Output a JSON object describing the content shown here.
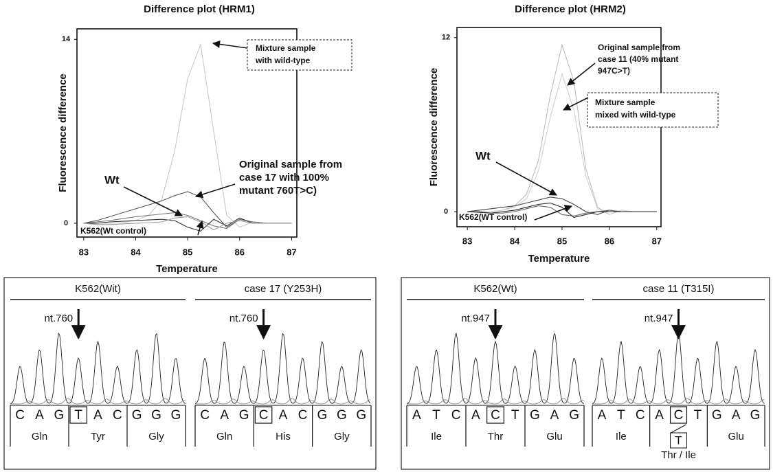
{
  "chart_data": [
    {
      "type": "line",
      "title": "Difference plot  (HRM1)",
      "x_label": "Temperature",
      "y_label": "Fluorescence difference",
      "x": [
        83,
        83.25,
        83.5,
        83.75,
        84,
        84.25,
        84.5,
        84.75,
        85,
        85.25,
        85.5,
        85.75,
        86,
        86.25,
        86.5,
        86.75,
        87
      ],
      "xlim": [
        82.87,
        87.1
      ],
      "xticks": [
        83,
        84,
        85,
        86,
        87
      ],
      "ylim": [
        -1.05,
        14.8
      ],
      "yticks": [
        0,
        14
      ],
      "series": [
        {
          "color": "#c8c8c8",
          "values": [
            0,
            0,
            0,
            0.05,
            0.2,
            0.6,
            1.8,
            5.5,
            11,
            13.6,
            7,
            0.6,
            -0.3,
            0.1,
            0,
            0,
            0
          ]
        },
        {
          "color": "#555555",
          "values": [
            0,
            0.2,
            0.5,
            0.8,
            1.1,
            1.4,
            1.7,
            2.1,
            2.4,
            2.0,
            0.8,
            -0.3,
            0.3,
            0.1,
            0,
            0,
            0
          ]
        },
        {
          "color": "#777777",
          "values": [
            0,
            0.1,
            0.2,
            0.35,
            0.5,
            0.6,
            0.7,
            0.8,
            0.6,
            0.2,
            -0.2,
            -0.4,
            0.3,
            0.1,
            0,
            0,
            0
          ]
        },
        {
          "color": "#333333",
          "values": [
            0,
            0,
            0.1,
            0.15,
            0.2,
            0.25,
            0.3,
            0.2,
            -0.3,
            -0.6,
            0.3,
            -0.2,
            0.4,
            0,
            0,
            0,
            0
          ]
        },
        {
          "color": "#999999",
          "values": [
            0,
            -0.1,
            -0.1,
            -0.05,
            0,
            0.05,
            0.1,
            0.4,
            0.5,
            0.1,
            -0.5,
            0,
            0.2,
            0,
            0,
            0,
            0
          ]
        }
      ],
      "annotations": [
        {
          "lines": [
            "Mixture sample",
            "with wild-type"
          ]
        },
        {
          "lines": [
            "Original sample from",
            "case 17 with 100%",
            "mutant 760T>C)"
          ]
        },
        {
          "lines": [
            "Wt"
          ]
        },
        {
          "lines": [
            "K562(Wt control)"
          ]
        }
      ]
    },
    {
      "type": "line",
      "title": "Difference plot  (HRM2)",
      "x_label": "Temperature",
      "y_label": "Fluorescence difference",
      "x": [
        83,
        83.25,
        83.5,
        83.75,
        84,
        84.25,
        84.5,
        84.75,
        85,
        85.25,
        85.5,
        85.75,
        86,
        86.25,
        86.5,
        86.75,
        87
      ],
      "xlim": [
        82.78,
        87.09
      ],
      "xticks": [
        83,
        84,
        85,
        86,
        87
      ],
      "ylim": [
        -1.04,
        12.7
      ],
      "yticks": [
        0,
        12
      ],
      "series": [
        {
          "color": "#bbbbbb",
          "values": [
            0,
            0,
            0,
            0.1,
            0.4,
            1.2,
            3.5,
            8,
            11.5,
            9,
            3,
            0.3,
            -0.2,
            0.1,
            0,
            0,
            0
          ]
        },
        {
          "color": "#d0d0d0",
          "values": [
            0,
            0,
            0,
            0.1,
            0.3,
            0.9,
            2.8,
            6.5,
            9.5,
            7,
            2.5,
            0.2,
            -0.2,
            0.1,
            0,
            0,
            0
          ]
        },
        {
          "color": "#444444",
          "values": [
            0,
            0.1,
            0.2,
            0.3,
            0.4,
            0.6,
            0.8,
            1.0,
            0.9,
            0.5,
            0,
            -0.2,
            0.1,
            0,
            0,
            0,
            0
          ]
        },
        {
          "color": "#666666",
          "values": [
            0,
            0,
            -0.1,
            -0.1,
            0,
            0.2,
            0.4,
            0.3,
            -0.2,
            -0.3,
            -0.1,
            0,
            0.1,
            0,
            0,
            0,
            0
          ]
        },
        {
          "color": "#222222",
          "values": [
            0,
            -0.05,
            -0.1,
            0,
            0.1,
            0.3,
            0.5,
            0.6,
            0.3,
            -0.4,
            -0.2,
            0,
            0,
            0,
            0,
            0,
            0
          ]
        }
      ],
      "annotations": [
        {
          "lines": [
            "Original sample from",
            "case 11 (40% mutant",
            "947C>T)"
          ]
        },
        {
          "lines": [
            "Mixture sample",
            "mixed with wild-type"
          ]
        },
        {
          "lines": [
            "Wt"
          ]
        },
        {
          "lines": [
            "K562(WT control)"
          ]
        }
      ]
    }
  ],
  "sequencing": [
    {
      "groups": [
        {
          "title": "K562(Wit)",
          "marker": "nt.760",
          "bases": [
            "C",
            "A",
            "G",
            "T",
            "A",
            "C",
            "G",
            "G",
            "G"
          ],
          "boxed": 3,
          "codons": [
            "Gln",
            "Tyr",
            "Gly"
          ]
        },
        {
          "title": "case 17 (Y253H)",
          "marker": "nt.760",
          "bases": [
            "C",
            "A",
            "G",
            "C",
            "A",
            "C",
            "G",
            "G",
            "G"
          ],
          "boxed": 3,
          "codons": [
            "Gln",
            "His",
            "Gly"
          ]
        }
      ]
    },
    {
      "groups": [
        {
          "title": "K562(Wt)",
          "marker": "nt.947",
          "bases": [
            "A",
            "T",
            "C",
            "A",
            "C",
            "T",
            "G",
            "A",
            "G"
          ],
          "boxed": 4,
          "codons": [
            "Ile",
            "Thr",
            "Glu"
          ]
        },
        {
          "title": "case 11 (T315I)",
          "marker": "nt.947",
          "bases": [
            "A",
            "T",
            "C",
            "A",
            "C",
            "T",
            "G",
            "A",
            "G"
          ],
          "boxed": 4,
          "alt": "T",
          "codons": [
            "Ile",
            "Thr / Ile",
            "Glu"
          ]
        }
      ]
    }
  ]
}
